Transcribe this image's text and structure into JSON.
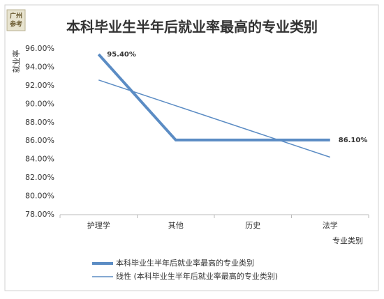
{
  "logo": {
    "line1": "广州",
    "line2": "参考"
  },
  "chart_data": {
    "type": "line",
    "title": "本科毕业生半年后就业率最高的专业类别",
    "y_label": "就业率",
    "x_label": "专业类别",
    "categories": [
      "护理学",
      "其他",
      "历史",
      "法学"
    ],
    "series": [
      {
        "name": "本科毕业生半年后就业率最高的专业类别",
        "color": "#5b8cc4",
        "width": 4,
        "values": [
          95.4,
          86.1,
          86.1,
          86.1
        ],
        "value_labels": [
          "95.40%",
          null,
          null,
          "86.10%"
        ]
      },
      {
        "name": "线性 (本科毕业生半年后就业率最高的专业类别)",
        "color": "#5b8cc4",
        "width": 1.5,
        "values": [
          92.61,
          89.82,
          87.03,
          84.24
        ]
      }
    ],
    "ylim": [
      78,
      96
    ],
    "yticks": [
      {
        "value": 78,
        "label": "78.00%"
      },
      {
        "value": 80,
        "label": "80.00%"
      },
      {
        "value": 82,
        "label": "82.00%"
      },
      {
        "value": 84,
        "label": "84.00%"
      },
      {
        "value": 86,
        "label": "86.00%"
      },
      {
        "value": 88,
        "label": "88.00%"
      },
      {
        "value": 90,
        "label": "90.00%"
      },
      {
        "value": 92,
        "label": "92.00%"
      },
      {
        "value": 94,
        "label": "94.00%"
      },
      {
        "value": 96,
        "label": "96.00%"
      }
    ],
    "grid": false
  }
}
